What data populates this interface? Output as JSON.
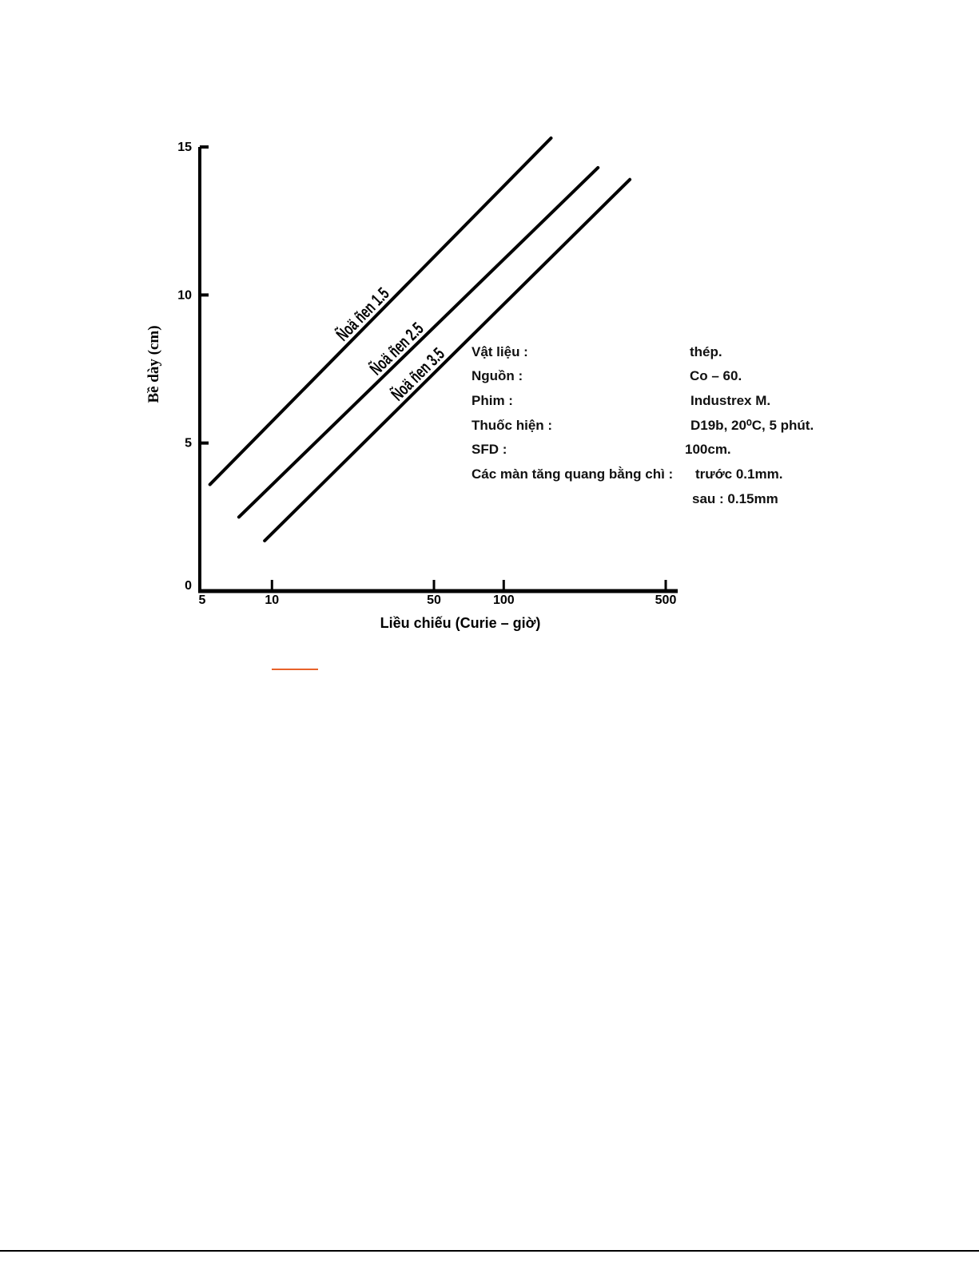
{
  "chart_data": {
    "type": "line",
    "title": "",
    "xlabel": "Liều chiếu (Curie – giờ)",
    "ylabel": "Bề dày (cm)",
    "x_scale": "log",
    "xlim": [
      5,
      500
    ],
    "ylim": [
      0,
      15
    ],
    "x_ticks": [
      "5",
      "10",
      "50",
      "100",
      "500"
    ],
    "y_ticks": [
      "0",
      "5",
      "10",
      "15"
    ],
    "grid": false,
    "series": [
      {
        "name": "Ñoä ñen 1.5",
        "x": [
          5.4,
          160
        ],
        "y": [
          3.6,
          15.3
        ]
      },
      {
        "name": "Ñoä ñen 2.5",
        "x": [
          7.2,
          255
        ],
        "y": [
          2.5,
          14.3
        ]
      },
      {
        "name": "Ñoä ñen 3.5",
        "x": [
          9.3,
          350
        ],
        "y": [
          1.7,
          13.9
        ]
      }
    ],
    "annotations": [
      {
        "label": "Vật liệu  :",
        "value": "thép."
      },
      {
        "label": "Nguồn :",
        "value": "Co – 60."
      },
      {
        "label": "Phim :",
        "value": "Industrex M."
      },
      {
        "label": "Thuốc hiện :",
        "value": "D19b, 20⁰C, 5 phút."
      },
      {
        "label": "SFD :",
        "value": "100cm."
      },
      {
        "label": "Các màn tăng quang bằng chì :",
        "value": "trước 0.1mm."
      },
      {
        "label": "",
        "value": "sau : 0.15mm"
      }
    ],
    "line_color": "#000000",
    "accent_mark_color": "#e8622a"
  }
}
